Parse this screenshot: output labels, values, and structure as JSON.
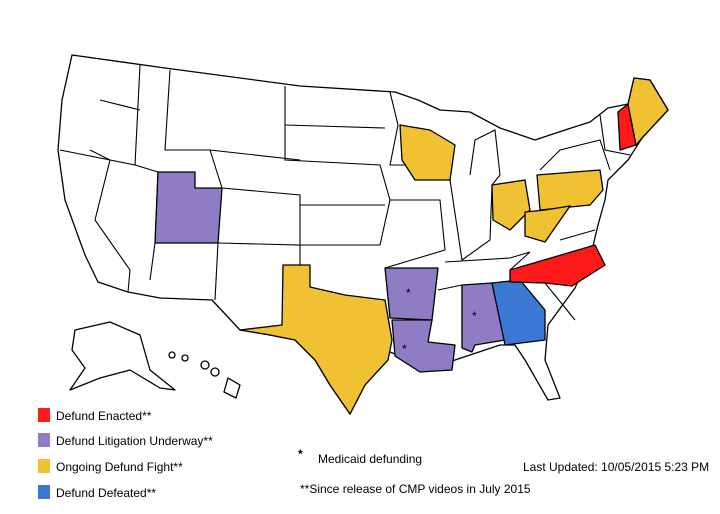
{
  "legend": [
    {
      "label": "Defund Enacted**",
      "color": "#ff1a1a"
    },
    {
      "label": "Defund Litigation Underway**",
      "color": "#8f7cc4"
    },
    {
      "label": "Ongoing Defund Fight**",
      "color": "#f0c132"
    },
    {
      "label": "Defund Defeated**",
      "color": "#3a78d4"
    }
  ],
  "map_marks": [
    "*",
    "*",
    "*"
  ],
  "notes": {
    "medicaid_symbol": "*",
    "medicaid_label": "Medicaid defunding",
    "last_updated": "Last Updated: 10/05/2015 5:23 PM",
    "footnote": "**Since release of CMP videos in July 2015"
  }
}
